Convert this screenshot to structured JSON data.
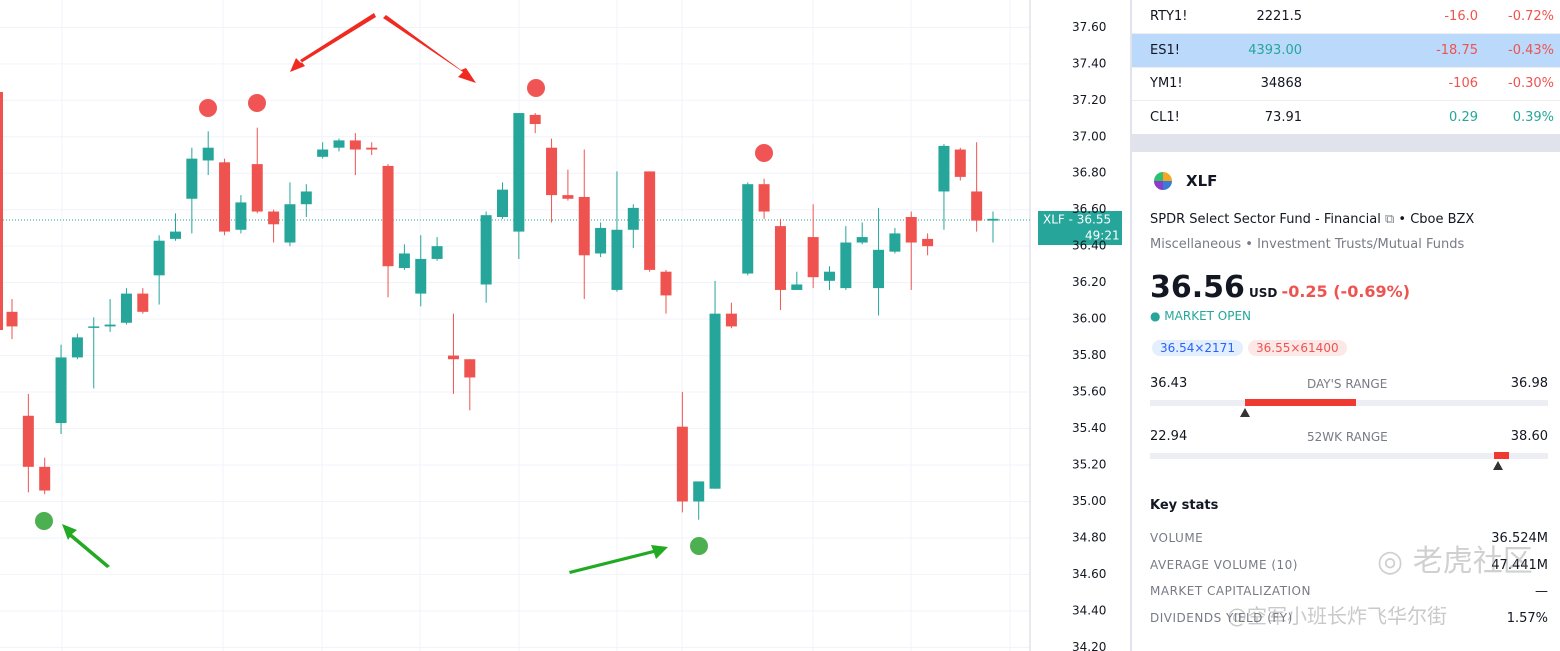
{
  "chart_data": {
    "type": "candlestick",
    "up_color": "#26a69a",
    "down_color": "#ef5350",
    "grid": true,
    "open": [
      36.04,
      35.47,
      35.19,
      35.43,
      35.79,
      35.96,
      35.96,
      35.98,
      36.14,
      36.24,
      36.44,
      36.66,
      36.87,
      36.86,
      36.49,
      36.85,
      36.59,
      36.42,
      36.63,
      36.89,
      36.94,
      36.98,
      36.94,
      36.84,
      36.28,
      36.14,
      36.33,
      35.8,
      35.78,
      36.19,
      36.56,
      36.48,
      37.12,
      36.94,
      36.68,
      36.67,
      36.36,
      36.16,
      36.49,
      36.81,
      36.26,
      35.41,
      35.0,
      35.07,
      36.03,
      36.25,
      36.74,
      36.51,
      36.16,
      36.45,
      36.21,
      36.17,
      36.42,
      36.17,
      36.37,
      36.56,
      36.44,
      36.7,
      36.93,
      36.7,
      36.54
    ],
    "high": [
      36.11,
      35.59,
      35.24,
      35.86,
      35.92,
      36.01,
      36.11,
      36.17,
      36.17,
      36.46,
      36.58,
      36.94,
      37.03,
      36.88,
      36.68,
      37.05,
      36.6,
      36.75,
      36.74,
      36.97,
      36.99,
      37.02,
      36.97,
      36.85,
      36.41,
      36.46,
      36.45,
      36.03,
      35.78,
      36.59,
      36.75,
      37.13,
      37.13,
      36.99,
      36.82,
      36.93,
      36.53,
      36.81,
      36.63,
      36.81,
      36.27,
      35.6,
      35.11,
      36.21,
      36.09,
      36.75,
      36.77,
      36.55,
      36.26,
      36.63,
      36.29,
      36.51,
      36.53,
      36.61,
      36.5,
      36.59,
      36.47,
      36.96,
      36.94,
      36.97,
      36.59
    ],
    "low": [
      35.89,
      35.05,
      35.04,
      35.37,
      35.78,
      35.62,
      35.93,
      35.97,
      36.03,
      36.08,
      36.43,
      36.47,
      36.79,
      36.46,
      36.47,
      36.58,
      36.42,
      36.4,
      36.56,
      36.88,
      36.92,
      36.79,
      36.9,
      36.12,
      36.27,
      36.07,
      36.32,
      35.59,
      35.5,
      36.09,
      36.55,
      36.33,
      37.02,
      36.53,
      36.65,
      36.11,
      36.34,
      36.15,
      36.39,
      36.26,
      36.03,
      34.94,
      34.9,
      35.07,
      35.95,
      36.24,
      36.55,
      36.05,
      36.16,
      36.17,
      36.16,
      36.16,
      36.41,
      36.02,
      36.36,
      36.16,
      36.35,
      36.49,
      36.76,
      36.48,
      36.42
    ],
    "close": [
      35.96,
      35.19,
      35.06,
      35.79,
      35.9,
      35.96,
      35.97,
      36.14,
      36.04,
      36.43,
      36.48,
      36.88,
      36.94,
      36.48,
      36.64,
      36.59,
      36.52,
      36.63,
      36.7,
      36.93,
      36.98,
      36.93,
      36.93,
      36.29,
      36.36,
      36.33,
      36.4,
      35.78,
      35.68,
      36.57,
      36.71,
      37.13,
      37.07,
      36.68,
      36.66,
      36.35,
      36.5,
      36.49,
      36.61,
      36.27,
      36.13,
      35.0,
      35.11,
      36.03,
      35.96,
      36.74,
      36.59,
      36.16,
      36.19,
      36.23,
      36.26,
      36.42,
      36.45,
      36.38,
      36.47,
      36.42,
      36.4,
      36.95,
      36.78,
      36.54,
      36.55
    ],
    "ylim": [
      34.18,
      37.75
    ],
    "yticks": [
      {
        "value": 34.2,
        "label": "34.20"
      },
      {
        "value": 34.4,
        "label": "34.40"
      },
      {
        "value": 34.6,
        "label": "34.60"
      },
      {
        "value": 34.8,
        "label": "34.80"
      },
      {
        "value": 35,
        "label": "35.00"
      },
      {
        "value": 35.2,
        "label": "35.20"
      },
      {
        "value": 35.4,
        "label": "35.40"
      },
      {
        "value": 35.6,
        "label": "35.60"
      },
      {
        "value": 35.8,
        "label": "35.80"
      },
      {
        "value": 36,
        "label": "36.00"
      },
      {
        "value": 36.2,
        "label": "36.20"
      },
      {
        "value": 36.4,
        "label": "36.40"
      },
      {
        "value": 36.6,
        "label": "36.60"
      },
      {
        "value": 36.8,
        "label": "36.80"
      },
      {
        "value": 37,
        "label": "37.00"
      },
      {
        "value": 37.2,
        "label": "37.20"
      },
      {
        "value": 37.4,
        "label": "37.40"
      },
      {
        "value": 37.6,
        "label": "37.60"
      }
    ],
    "price_label": "XLF - 36.55",
    "countdown": "49:21"
  },
  "watchlist": [
    {
      "symbol": "RTY1!",
      "last": "2221.5",
      "change": "-16.0",
      "change_pct": "-0.72%"
    },
    {
      "symbol": "ES1!",
      "last": "4393.00",
      "change": "-18.75",
      "change_pct": "-0.43%"
    },
    {
      "symbol": "YM1!",
      "last": "34868",
      "change": "-106",
      "change_pct": "-0.30%"
    },
    {
      "symbol": "CL1!",
      "last": "73.91",
      "change": "0.29",
      "change_pct": "0.39%"
    }
  ],
  "details": {
    "symbol": "XLF",
    "name": "SPDR Select Sector Fund - Financial",
    "exchange": "Cboe BZX",
    "sector": "Miscellaneous",
    "industry": "Investment Trusts/Mutual Funds",
    "price": "36.56",
    "currency": "USD",
    "change": "-0.25 (-0.69%)",
    "status": "MARKET OPEN",
    "bid": "36.54×2171",
    "ask": "36.55×61400",
    "day_range": {
      "low": "36.43",
      "label": "DAY'S RANGE",
      "high": "36.98"
    },
    "wk52_range": {
      "low": "22.94",
      "label": "52WK RANGE",
      "high": "38.60"
    },
    "key_stats_title": "Key stats",
    "key_stats": [
      {
        "label": "VOLUME",
        "value": "36.524M"
      },
      {
        "label": "AVERAGE VOLUME (10)",
        "value": "47.441M"
      },
      {
        "label": "MARKET CAPITALIZATION",
        "value": "—"
      },
      {
        "label": "DIVIDENDS YIELD (FY)",
        "value": "1.57%"
      }
    ]
  },
  "watermark": {
    "brand": "老虎社区",
    "author": "@空军小班长炸飞华尔街"
  }
}
